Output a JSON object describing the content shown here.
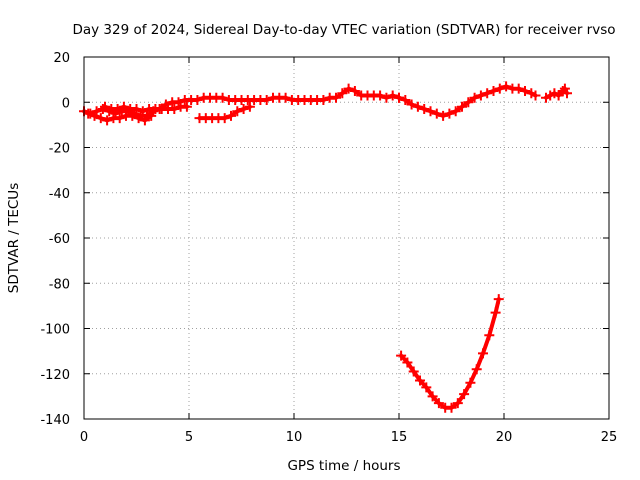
{
  "chart_data": {
    "type": "scatter",
    "title": "Day 329 of 2024, Sidereal Day-to-day VTEC variation (SDTVAR) for receiver rvso",
    "xlabel": "GPS time / hours",
    "ylabel": "SDTVAR / TECUs",
    "xlim": [
      0,
      25
    ],
    "ylim": [
      -140,
      20
    ],
    "xticks": [
      0,
      5,
      10,
      15,
      20,
      25
    ],
    "yticks": [
      20,
      0,
      -20,
      -40,
      -60,
      -80,
      -100,
      -120,
      -140
    ],
    "grid": true,
    "marker": "+",
    "color": "#ff0000",
    "series": [
      {
        "values": [
          [
            0.0,
            -4
          ],
          [
            0.3,
            -5
          ],
          [
            0.6,
            -4
          ],
          [
            0.9,
            -3
          ],
          [
            1.2,
            -4
          ],
          [
            1.5,
            -5
          ],
          [
            1.8,
            -4
          ],
          [
            2.1,
            -4
          ],
          [
            2.4,
            -5
          ],
          [
            2.7,
            -6
          ],
          [
            3.0,
            -6
          ],
          [
            3.3,
            -4
          ],
          [
            3.6,
            -3
          ],
          [
            3.9,
            -1
          ],
          [
            4.2,
            0
          ],
          [
            4.5,
            0
          ],
          [
            4.8,
            1
          ],
          [
            5.1,
            1
          ],
          [
            5.4,
            1
          ],
          [
            5.7,
            2
          ],
          [
            6.0,
            2
          ],
          [
            6.3,
            2
          ],
          [
            6.6,
            2
          ],
          [
            6.9,
            1
          ],
          [
            7.2,
            1
          ],
          [
            7.5,
            1
          ],
          [
            7.8,
            1
          ],
          [
            8.1,
            1
          ],
          [
            8.4,
            1
          ],
          [
            8.7,
            1
          ],
          [
            9.0,
            2
          ],
          [
            9.3,
            2
          ],
          [
            9.6,
            2
          ],
          [
            9.9,
            1
          ],
          [
            10.2,
            1
          ],
          [
            10.5,
            1
          ],
          [
            10.8,
            1
          ],
          [
            11.1,
            1
          ],
          [
            11.4,
            1
          ],
          [
            11.7,
            2
          ],
          [
            12.0,
            2
          ],
          [
            12.3,
            4
          ],
          [
            12.6,
            6
          ],
          [
            12.9,
            5
          ],
          [
            13.2,
            3
          ],
          [
            13.5,
            3
          ],
          [
            13.8,
            3
          ],
          [
            14.1,
            3
          ],
          [
            14.4,
            2
          ],
          [
            14.7,
            3
          ],
          [
            15.0,
            2
          ]
        ]
      },
      {
        "values": [
          [
            0.2,
            -5
          ],
          [
            0.5,
            -6
          ],
          [
            0.8,
            -7
          ],
          [
            1.1,
            -8
          ],
          [
            1.4,
            -7
          ],
          [
            1.7,
            -7
          ],
          [
            2.0,
            -6
          ],
          [
            2.3,
            -6
          ],
          [
            2.6,
            -7
          ],
          [
            2.9,
            -8
          ],
          [
            3.2,
            -6
          ]
        ]
      },
      {
        "values": [
          [
            1.0,
            -2
          ],
          [
            1.3,
            -3
          ],
          [
            1.6,
            -3
          ],
          [
            1.9,
            -2
          ],
          [
            2.2,
            -3
          ],
          [
            2.5,
            -3
          ],
          [
            2.8,
            -4
          ],
          [
            3.1,
            -3
          ],
          [
            3.4,
            -3
          ],
          [
            3.7,
            -3
          ],
          [
            4.0,
            -3
          ],
          [
            4.3,
            -3
          ],
          [
            4.6,
            -2
          ],
          [
            4.9,
            -2
          ]
        ]
      },
      {
        "values": [
          [
            5.5,
            -7
          ],
          [
            5.8,
            -7
          ],
          [
            6.1,
            -7
          ],
          [
            6.4,
            -7
          ],
          [
            6.7,
            -7
          ],
          [
            7.0,
            -6
          ],
          [
            7.3,
            -4
          ],
          [
            7.6,
            -3
          ],
          [
            7.9,
            -2
          ]
        ]
      },
      {
        "values": [
          [
            15.0,
            2
          ],
          [
            15.3,
            1
          ],
          [
            15.6,
            -1
          ],
          [
            15.9,
            -2
          ],
          [
            16.2,
            -3
          ],
          [
            16.5,
            -4
          ],
          [
            16.8,
            -5
          ],
          [
            17.1,
            -6
          ],
          [
            17.4,
            -5
          ],
          [
            17.7,
            -4
          ],
          [
            18.0,
            -2
          ],
          [
            18.3,
            0
          ],
          [
            18.6,
            2
          ],
          [
            18.9,
            3
          ],
          [
            19.2,
            4
          ],
          [
            19.5,
            5
          ],
          [
            19.8,
            6
          ],
          [
            20.1,
            7
          ],
          [
            20.4,
            6
          ],
          [
            20.7,
            6
          ],
          [
            21.0,
            5
          ],
          [
            21.3,
            4
          ],
          [
            21.5,
            3
          ]
        ]
      },
      {
        "values": [
          [
            22.0,
            2
          ],
          [
            22.2,
            3
          ],
          [
            22.4,
            4
          ],
          [
            22.6,
            3
          ],
          [
            22.8,
            5
          ],
          [
            22.9,
            6
          ],
          [
            23.0,
            4
          ]
        ]
      },
      {
        "values": [
          [
            15.1,
            -112
          ],
          [
            15.4,
            -115
          ],
          [
            15.7,
            -119
          ],
          [
            16.0,
            -123
          ],
          [
            16.3,
            -126
          ],
          [
            16.6,
            -130
          ],
          [
            16.9,
            -133
          ],
          [
            17.2,
            -135
          ],
          [
            17.5,
            -135
          ],
          [
            17.8,
            -133
          ],
          [
            18.1,
            -129
          ],
          [
            18.4,
            -124
          ],
          [
            18.7,
            -118
          ],
          [
            19.0,
            -111
          ],
          [
            19.3,
            -103
          ],
          [
            19.6,
            -93
          ],
          [
            19.75,
            -87
          ]
        ]
      }
    ]
  }
}
